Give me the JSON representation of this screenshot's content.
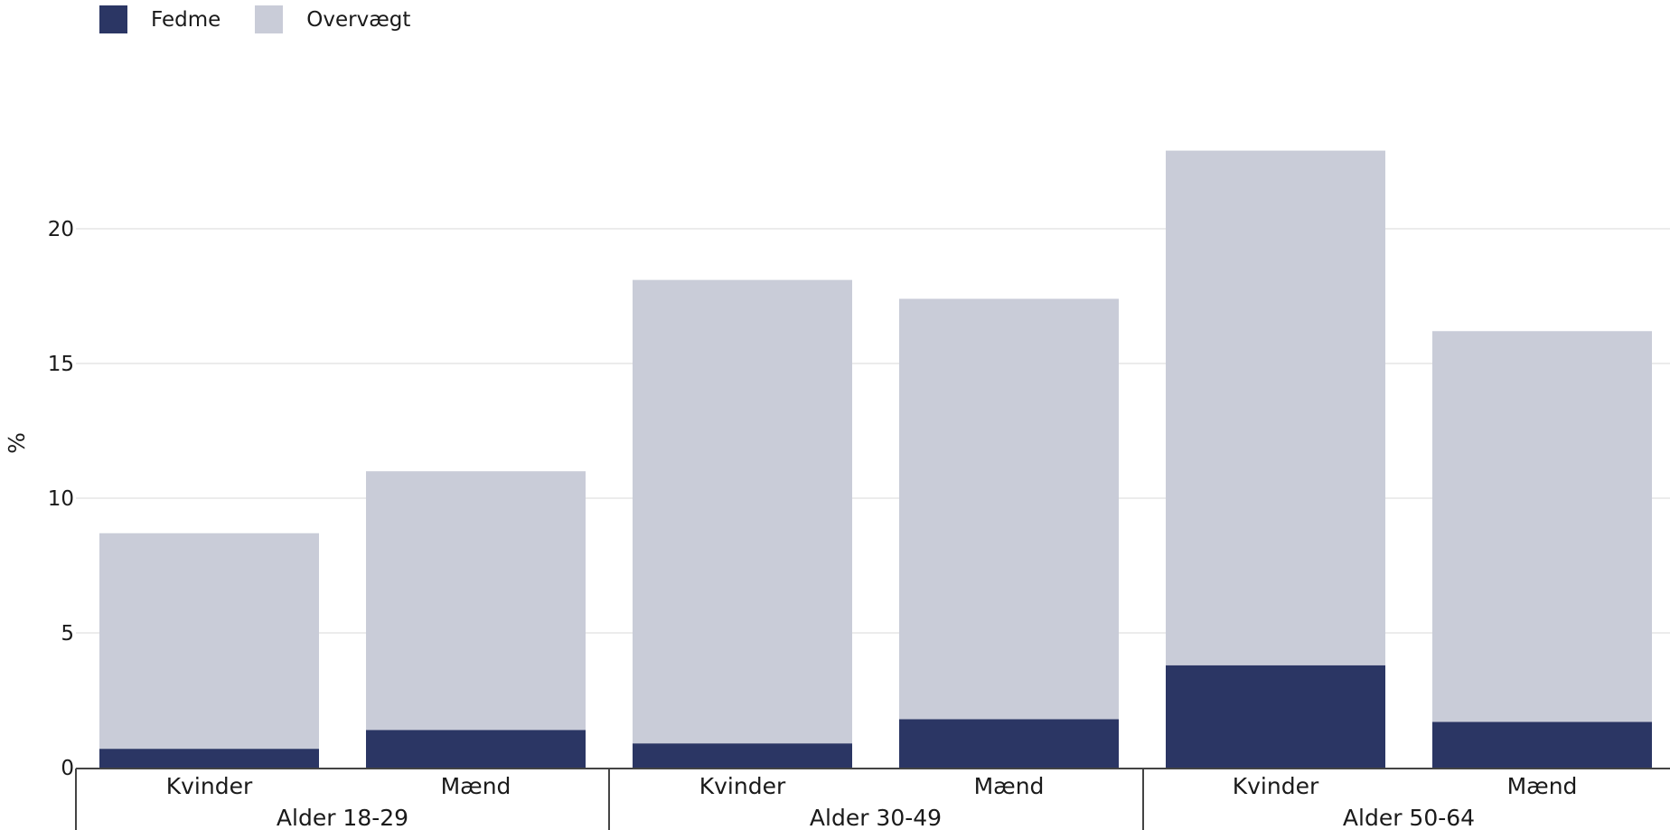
{
  "chart_data": {
    "type": "bar",
    "stacked": true,
    "title": "",
    "xlabel": "",
    "ylabel": "%",
    "ylim": [
      0,
      24
    ],
    "yticks": [
      0,
      5,
      10,
      15,
      20
    ],
    "grid": true,
    "legend_position": "top-left",
    "groups": [
      {
        "label": "Alder 18-29",
        "categories": [
          "Kvinder",
          "Mænd"
        ]
      },
      {
        "label": "Alder 30-49",
        "categories": [
          "Kvinder",
          "Mænd"
        ]
      },
      {
        "label": "Alder 50-64",
        "categories": [
          "Kvinder",
          "Mænd"
        ]
      }
    ],
    "categories": [
      "Kvinder",
      "Mænd",
      "Kvinder",
      "Mænd",
      "Kvinder",
      "Mænd"
    ],
    "series": [
      {
        "name": "Fedme",
        "color": "#2b3664",
        "values": [
          0.7,
          1.4,
          0.9,
          1.8,
          3.8,
          1.7
        ]
      },
      {
        "name": "Overvægt",
        "color": "#c9ccd8",
        "values": [
          8.0,
          9.6,
          17.2,
          15.6,
          19.1,
          14.5
        ]
      }
    ]
  }
}
